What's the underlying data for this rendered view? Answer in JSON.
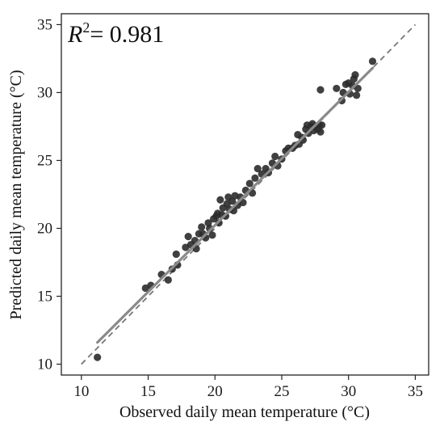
{
  "chart_data": {
    "type": "scatter",
    "xlabel": "Observed daily mean temperature (°C)",
    "ylabel": "Predicted daily mean temperature (°C)",
    "annotation": {
      "r2_symbol": "R",
      "r2_exp": "2",
      "r2_value": "= 0.981"
    },
    "xlim": [
      8.5,
      36
    ],
    "ylim": [
      9.2,
      35.8
    ],
    "xticks": [
      10,
      15,
      20,
      25,
      30,
      35
    ],
    "yticks": [
      10,
      15,
      20,
      25,
      30,
      35
    ],
    "grid": false,
    "identity_line": {
      "x": [
        10,
        35
      ],
      "y": [
        10,
        35
      ],
      "style": "dashed"
    },
    "fit_line": {
      "x": [
        11.2,
        31.8
      ],
      "y": [
        11.6,
        31.8
      ]
    },
    "colors": {
      "points": "#2b2b2b",
      "fit_line": "#8a8a8a",
      "identity_line": "#777777"
    },
    "points": [
      [
        11.2,
        10.5
      ],
      [
        14.8,
        15.6
      ],
      [
        15.2,
        15.8
      ],
      [
        16.0,
        16.6
      ],
      [
        16.5,
        16.2
      ],
      [
        16.8,
        17.0
      ],
      [
        17.2,
        17.3
      ],
      [
        17.1,
        18.1
      ],
      [
        17.8,
        18.6
      ],
      [
        18.0,
        19.4
      ],
      [
        18.2,
        18.8
      ],
      [
        18.5,
        19.1
      ],
      [
        18.8,
        19.6
      ],
      [
        18.6,
        18.5
      ],
      [
        19.0,
        20.1
      ],
      [
        19.1,
        19.6
      ],
      [
        19.3,
        19.3
      ],
      [
        19.5,
        20.4
      ],
      [
        19.6,
        20.0
      ],
      [
        19.8,
        19.5
      ],
      [
        19.9,
        20.7
      ],
      [
        20.1,
        20.9
      ],
      [
        20.2,
        21.1
      ],
      [
        20.3,
        20.4
      ],
      [
        20.4,
        22.1
      ],
      [
        20.5,
        21.0
      ],
      [
        20.6,
        21.5
      ],
      [
        20.8,
        20.9
      ],
      [
        20.9,
        21.8
      ],
      [
        21.0,
        22.3
      ],
      [
        21.1,
        21.4
      ],
      [
        21.3,
        22.0
      ],
      [
        21.4,
        21.3
      ],
      [
        21.5,
        22.4
      ],
      [
        21.7,
        21.7
      ],
      [
        21.9,
        22.3
      ],
      [
        22.1,
        21.9
      ],
      [
        22.3,
        22.8
      ],
      [
        22.6,
        23.3
      ],
      [
        22.8,
        22.6
      ],
      [
        23.0,
        23.7
      ],
      [
        23.2,
        24.4
      ],
      [
        23.5,
        24.0
      ],
      [
        23.8,
        24.4
      ],
      [
        24.0,
        24.1
      ],
      [
        24.3,
        24.8
      ],
      [
        24.5,
        25.3
      ],
      [
        24.7,
        24.6
      ],
      [
        25.0,
        25.1
      ],
      [
        25.3,
        25.7
      ],
      [
        25.5,
        25.9
      ],
      [
        25.8,
        25.9
      ],
      [
        26.0,
        26.1
      ],
      [
        26.2,
        26.9
      ],
      [
        26.3,
        26.2
      ],
      [
        26.5,
        26.7
      ],
      [
        26.6,
        26.5
      ],
      [
        26.8,
        27.3
      ],
      [
        26.9,
        27.6
      ],
      [
        27.0,
        27.0
      ],
      [
        27.2,
        27.5
      ],
      [
        27.3,
        27.7
      ],
      [
        27.4,
        27.2
      ],
      [
        27.5,
        27.5
      ],
      [
        27.7,
        27.3
      ],
      [
        27.8,
        27.6
      ],
      [
        27.9,
        27.1
      ],
      [
        28.0,
        27.6
      ],
      [
        27.9,
        30.2
      ],
      [
        29.1,
        30.3
      ],
      [
        29.5,
        29.4
      ],
      [
        29.6,
        30.0
      ],
      [
        29.8,
        30.6
      ],
      [
        30.0,
        30.7
      ],
      [
        30.1,
        29.9
      ],
      [
        30.3,
        30.5
      ],
      [
        30.4,
        31.0
      ],
      [
        30.5,
        31.3
      ],
      [
        30.6,
        29.8
      ],
      [
        30.7,
        30.3
      ],
      [
        31.8,
        32.3
      ]
    ]
  }
}
